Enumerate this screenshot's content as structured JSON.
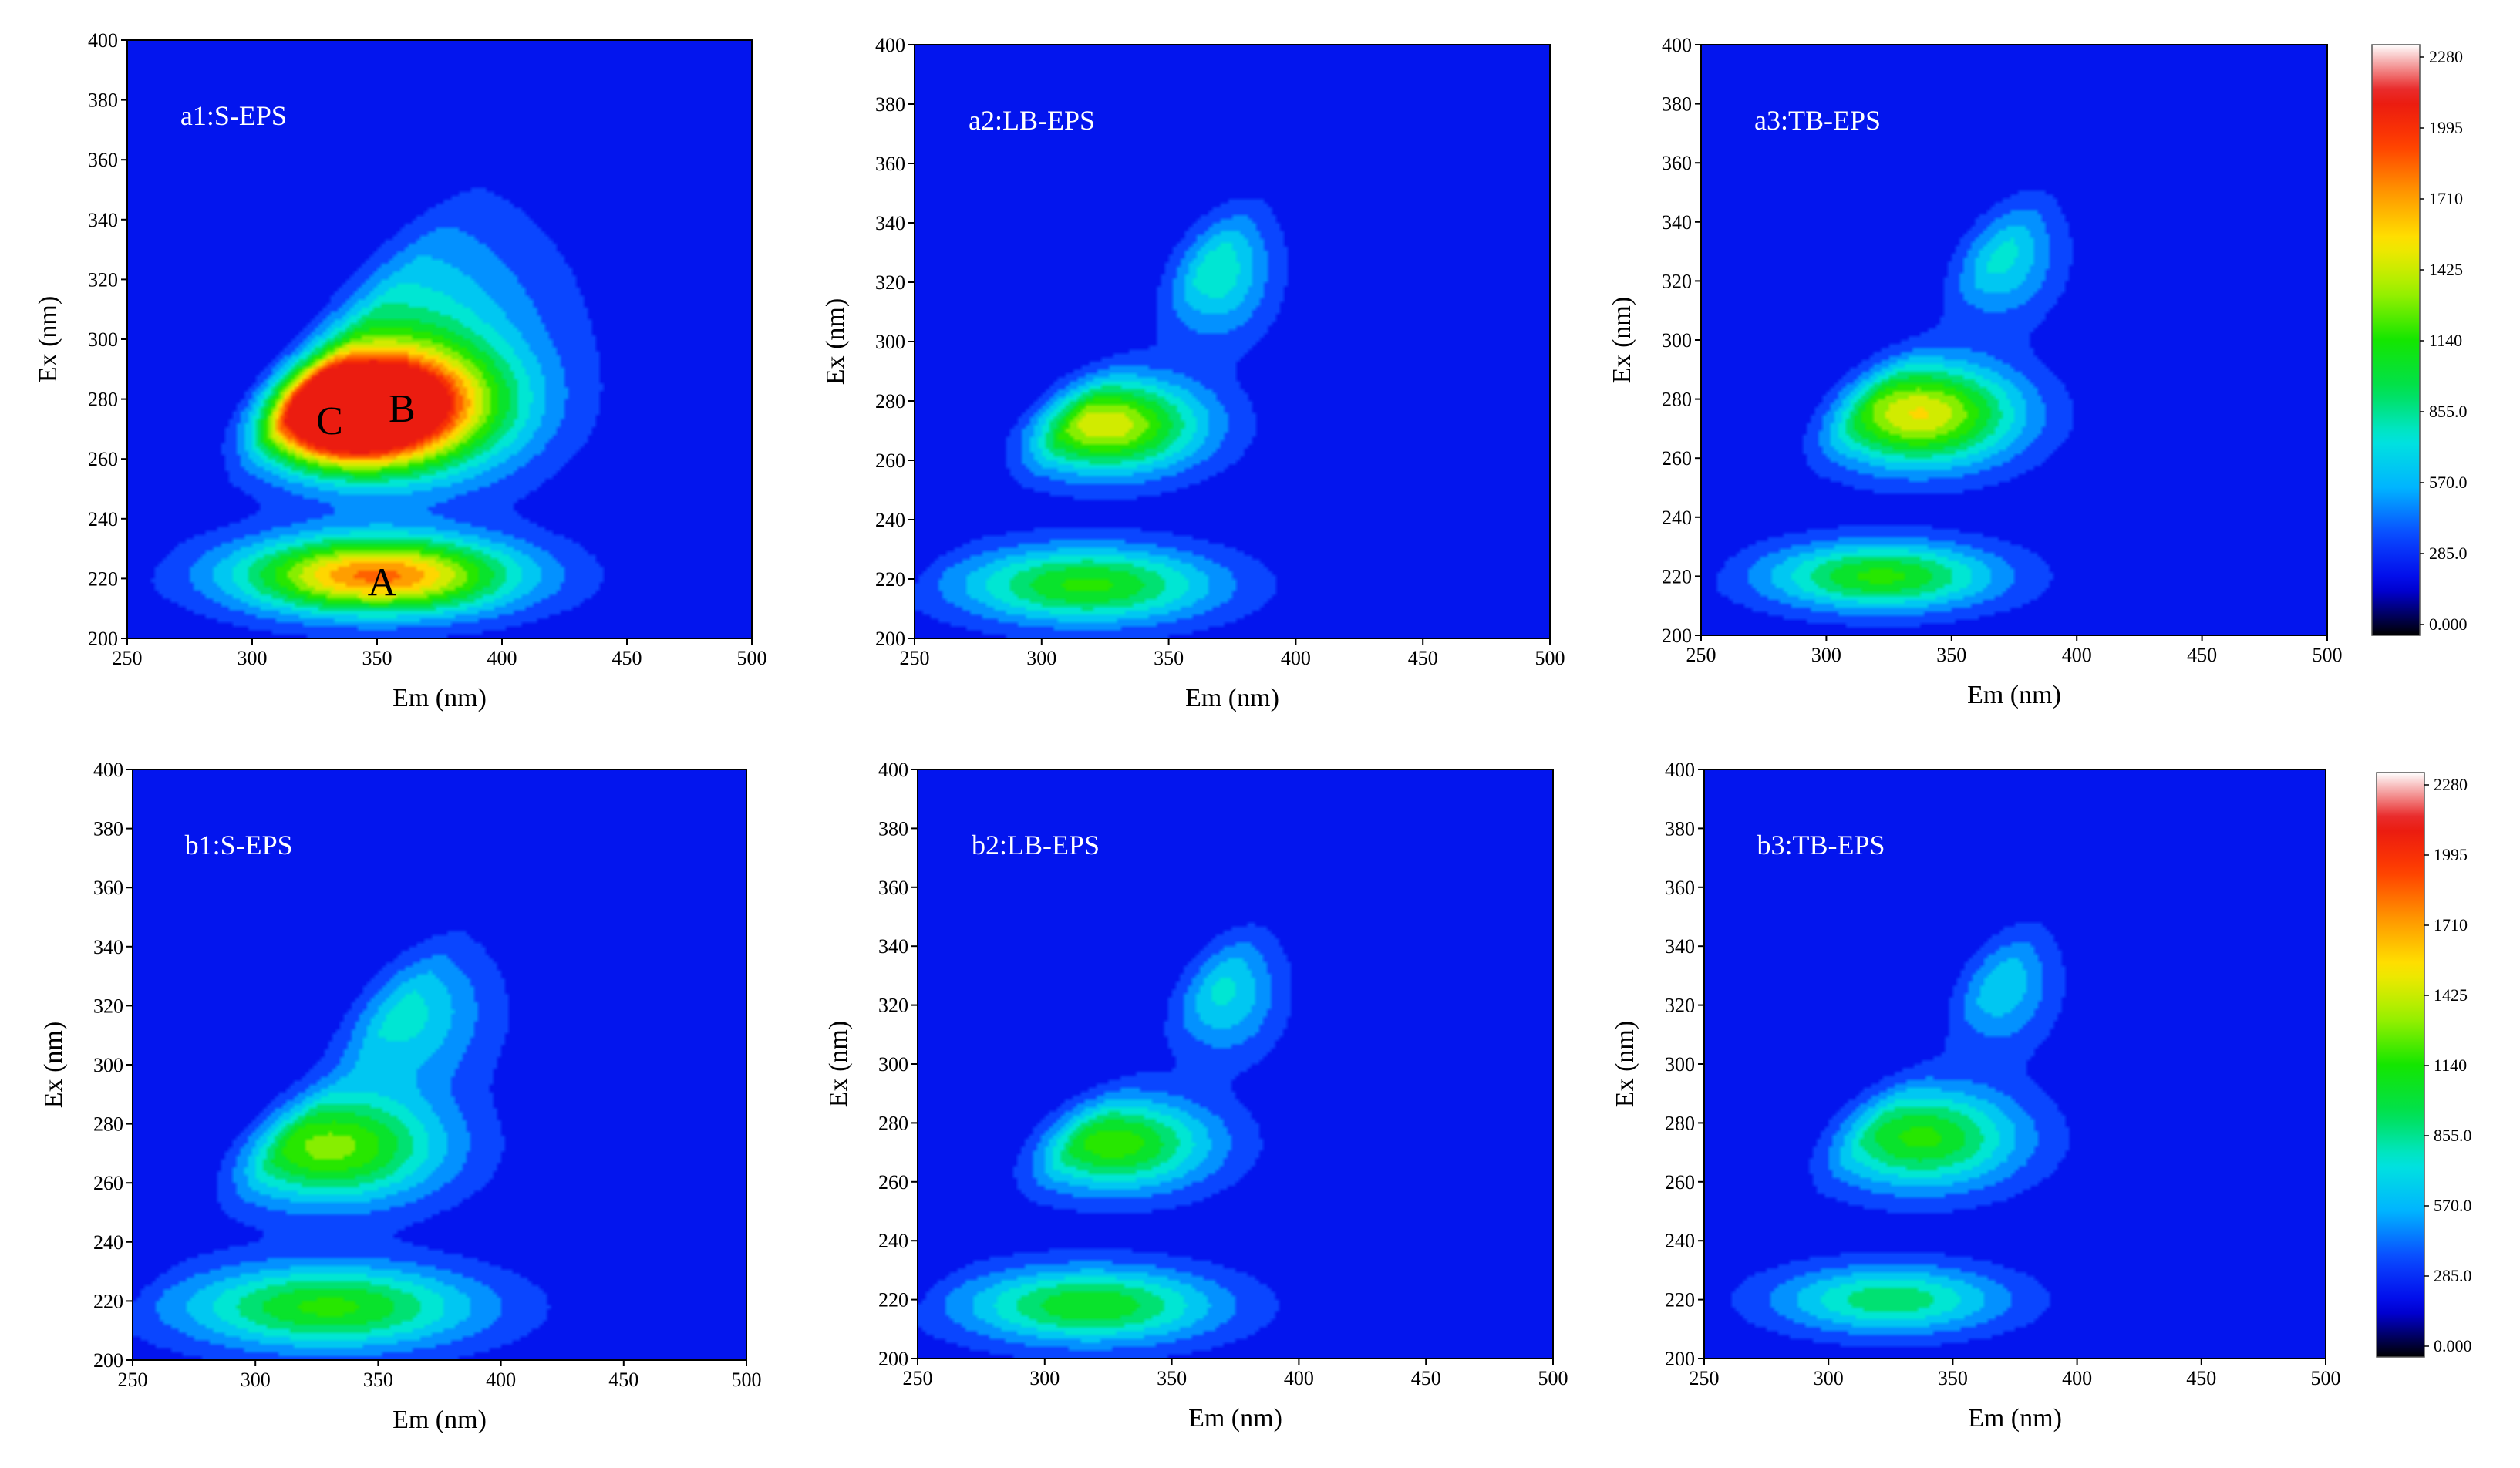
{
  "figure": {
    "xlabel": "Em (nm)",
    "ylabel": "Ex (nm)"
  },
  "colorbar": {
    "ticks": [
      "2280",
      "1995",
      "1710",
      "1425",
      "1140",
      "855.0",
      "570.0",
      "285.0",
      "0.000"
    ],
    "min": 0,
    "max": 2280,
    "stops": [
      "#000000",
      "#0000e6",
      "#0a46ff",
      "#00b4ff",
      "#00e6dc",
      "#00e050",
      "#14e600",
      "#a0f000",
      "#ffe600",
      "#ff9600",
      "#ff3c00",
      "#e61414",
      "#ffffff"
    ]
  },
  "chart_data": [
    {
      "type": "heatmap",
      "title": "a1:S-EPS",
      "xlabel": "Em (nm)",
      "ylabel": "Ex (nm)",
      "xlim": [
        250,
        500
      ],
      "ylim": [
        200,
        400
      ],
      "xticks": [
        250,
        300,
        350,
        400,
        450,
        500
      ],
      "yticks": [
        200,
        220,
        240,
        260,
        280,
        300,
        320,
        340,
        360,
        380,
        400
      ],
      "peaks": [
        {
          "x": 335,
          "y": 275,
          "value": 2050,
          "sx": 22,
          "sy": 11
        },
        {
          "x": 358,
          "y": 278,
          "value": 1650,
          "sx": 30,
          "sy": 14
        },
        {
          "x": 350,
          "y": 221,
          "value": 1700,
          "sx": 38,
          "sy": 9
        },
        {
          "x": 358,
          "y": 300,
          "value": 620,
          "sx": 40,
          "sy": 30
        }
      ],
      "labels": [
        {
          "text": "C",
          "x": 331,
          "y": 273
        },
        {
          "text": "B",
          "x": 360,
          "y": 277
        },
        {
          "text": "A",
          "x": 352,
          "y": 219
        }
      ]
    },
    {
      "type": "heatmap",
      "title": "a2:LB-EPS",
      "xlabel": "Em (nm)",
      "ylabel": "Ex (nm)",
      "xlim": [
        250,
        500
      ],
      "ylim": [
        200,
        400
      ],
      "xticks": [
        250,
        300,
        350,
        400,
        450,
        500
      ],
      "yticks": [
        200,
        220,
        240,
        260,
        280,
        300,
        320,
        340,
        360,
        380,
        400
      ],
      "peaks": [
        {
          "x": 325,
          "y": 272,
          "value": 1350,
          "sx": 26,
          "sy": 11
        },
        {
          "x": 318,
          "y": 218,
          "value": 1000,
          "sx": 35,
          "sy": 9
        },
        {
          "x": 368,
          "y": 325,
          "value": 650,
          "sx": 15,
          "sy": 16
        }
      ],
      "labels": []
    },
    {
      "type": "heatmap",
      "title": "a3:TB-EPS",
      "xlabel": "Em (nm)",
      "ylabel": "Ex (nm)",
      "xlim": [
        250,
        500
      ],
      "ylim": [
        200,
        400
      ],
      "xticks": [
        250,
        300,
        350,
        400,
        450,
        500
      ],
      "yticks": [
        200,
        220,
        240,
        260,
        280,
        300,
        320,
        340,
        360,
        380,
        400
      ],
      "peaks": [
        {
          "x": 337,
          "y": 275,
          "value": 1400,
          "sx": 27,
          "sy": 12
        },
        {
          "x": 322,
          "y": 220,
          "value": 1000,
          "sx": 32,
          "sy": 8
        },
        {
          "x": 368,
          "y": 330,
          "value": 600,
          "sx": 16,
          "sy": 15
        }
      ],
      "labels": []
    },
    {
      "type": "heatmap",
      "title": "b1:S-EPS",
      "xlabel": "Em (nm)",
      "ylabel": "Ex (nm)",
      "xlim": [
        250,
        500
      ],
      "ylim": [
        200,
        400
      ],
      "xticks": [
        250,
        300,
        350,
        400,
        450,
        500
      ],
      "yticks": [
        200,
        220,
        240,
        260,
        280,
        300,
        320,
        340,
        360,
        380,
        400
      ],
      "peaks": [
        {
          "x": 330,
          "y": 272,
          "value": 1150,
          "sx": 32,
          "sy": 13
        },
        {
          "x": 330,
          "y": 218,
          "value": 1000,
          "sx": 42,
          "sy": 10
        },
        {
          "x": 358,
          "y": 318,
          "value": 600,
          "sx": 24,
          "sy": 18
        }
      ],
      "labels": []
    },
    {
      "type": "heatmap",
      "title": "b2:LB-EPS",
      "xlabel": "Em (nm)",
      "ylabel": "Ex (nm)",
      "xlim": [
        250,
        500
      ],
      "ylim": [
        200,
        400
      ],
      "xticks": [
        250,
        300,
        350,
        400,
        450,
        500
      ],
      "yticks": [
        200,
        220,
        240,
        260,
        280,
        300,
        320,
        340,
        360,
        380,
        400
      ],
      "peaks": [
        {
          "x": 327,
          "y": 273,
          "value": 1050,
          "sx": 27,
          "sy": 11
        },
        {
          "x": 318,
          "y": 218,
          "value": 950,
          "sx": 35,
          "sy": 9
        },
        {
          "x": 370,
          "y": 325,
          "value": 560,
          "sx": 15,
          "sy": 15
        }
      ],
      "labels": []
    },
    {
      "type": "heatmap",
      "title": "b3:TB-EPS",
      "xlabel": "Em (nm)",
      "ylabel": "Ex (nm)",
      "xlim": [
        250,
        500
      ],
      "ylim": [
        200,
        400
      ],
      "xticks": [
        250,
        300,
        350,
        400,
        450,
        500
      ],
      "yticks": [
        200,
        220,
        240,
        260,
        280,
        300,
        320,
        340,
        360,
        380,
        400
      ],
      "peaks": [
        {
          "x": 337,
          "y": 275,
          "value": 1000,
          "sx": 28,
          "sy": 12
        },
        {
          "x": 325,
          "y": 220,
          "value": 780,
          "sx": 32,
          "sy": 8
        },
        {
          "x": 368,
          "y": 328,
          "value": 520,
          "sx": 15,
          "sy": 15
        }
      ],
      "labels": []
    }
  ]
}
